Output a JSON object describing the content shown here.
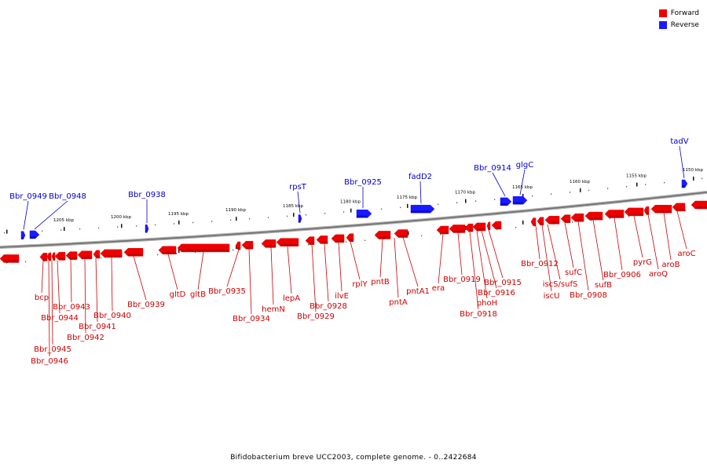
{
  "legend": [
    {
      "label": "Forward",
      "color": "#ee0000"
    },
    {
      "label": "Reverse",
      "color": "#1a1aff"
    }
  ],
  "caption": "Bifidobacterium breve UCC2003, complete genome. - 0..2422684",
  "colors": {
    "forward": "#ee0000",
    "reverse": "#1a1aff",
    "backbone": "#808080"
  },
  "ticks": [
    "1205 kbp",
    "1200 kbp",
    "1195 kbp",
    "1190 kbp",
    "1185 kbp",
    "1180 kbp",
    "1175 kbp",
    "1170 kbp",
    "1165 kbp",
    "1160 kbp",
    "1155 kbp",
    "1150 kbp"
  ],
  "reverse_genes": [
    "Bbr_0949",
    "Bbr_0948",
    "Bbr_0938",
    "rpsT",
    "Bbr_0925",
    "fadD2",
    "Bbr_0914",
    "glgC",
    "tadV"
  ],
  "forward_genes": [
    "bcp",
    "Bbr_0946",
    "Bbr_0945",
    "Bbr_0944",
    "Bbr_0943",
    "Bbr_0942",
    "Bbr_0941",
    "Bbr_0940",
    "Bbr_0939",
    "gltD",
    "gltB",
    "Bbr_0935",
    "Bbr_0934",
    "hemN",
    "lepA",
    "Bbr_0929",
    "Bbr_0928",
    "ilvE",
    "rplY",
    "pntB",
    "pntA",
    "pntA1",
    "era",
    "Bbr_0919",
    "Bbr_0918",
    "phoH",
    "Bbr_0916",
    "Bbr_0915",
    "Bbr_0912",
    "iscU",
    "iscS/sufS",
    "sufC",
    "Bbr_0908",
    "sufB",
    "Bbr_0906",
    "pyrG",
    "aroQ",
    "aroB",
    "aroC"
  ]
}
